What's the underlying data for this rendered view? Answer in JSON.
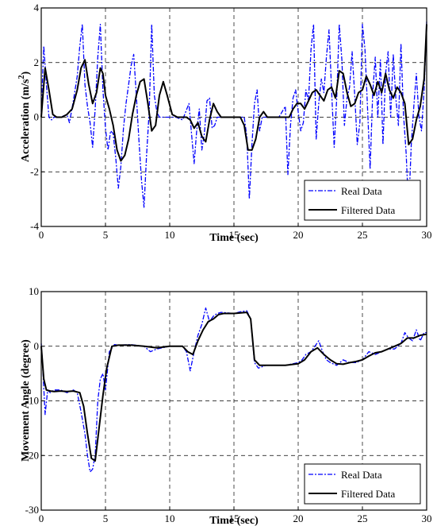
{
  "chart_data": [
    {
      "type": "line",
      "xlabel": "Time (sec)",
      "ylabel_main": "Acceleration (m/s",
      "ylabel_sup": "2",
      "ylabel_tail": ")",
      "xlim": [
        0,
        30
      ],
      "ylim": [
        -4,
        4
      ],
      "xticks": [
        0,
        5,
        10,
        15,
        20,
        25,
        30
      ],
      "yticks": [
        -4,
        -2,
        0,
        2,
        4
      ],
      "grid": true,
      "legend_position": "bottom-right",
      "series": [
        {
          "name": "Real Data",
          "color": "#0000ff",
          "style": "dash-dot",
          "x": [
            0,
            0.2,
            0.4,
            0.6,
            0.8,
            1.0,
            1.5,
            2.0,
            2.2,
            2.5,
            2.8,
            3.0,
            3.2,
            3.4,
            3.6,
            3.8,
            4.0,
            4.2,
            4.4,
            4.6,
            4.8,
            5.0,
            5.2,
            5.4,
            5.6,
            5.8,
            6.0,
            6.2,
            6.4,
            6.6,
            6.8,
            7.0,
            7.2,
            7.4,
            7.6,
            7.8,
            8.0,
            8.2,
            8.4,
            8.6,
            8.8,
            9.0,
            9.2,
            9.4,
            9.6,
            9.8,
            10.0,
            10.5,
            11.0,
            11.5,
            11.7,
            11.9,
            12.1,
            12.3,
            12.5,
            12.7,
            12.9,
            13.1,
            13.3,
            13.5,
            13.7,
            14.0,
            14.5,
            15.0,
            15.5,
            15.8,
            16.0,
            16.2,
            16.4,
            16.6,
            16.8,
            17.0,
            17.2,
            17.4,
            17.6,
            18.0,
            18.5,
            19.0,
            19.2,
            19.4,
            19.6,
            19.8,
            20.0,
            20.2,
            20.4,
            20.6,
            20.8,
            21.0,
            21.2,
            21.4,
            21.6,
            21.8,
            22.0,
            22.2,
            22.4,
            22.6,
            22.8,
            23.0,
            23.2,
            23.4,
            23.6,
            23.8,
            24.0,
            24.2,
            24.4,
            24.6,
            24.8,
            25.0,
            25.2,
            25.4,
            25.6,
            25.8,
            26.0,
            26.2,
            26.4,
            26.6,
            26.8,
            27.0,
            27.2,
            27.4,
            27.6,
            27.8,
            28.0,
            28.2,
            28.4,
            28.6,
            28.8,
            29.0,
            29.2,
            29.4,
            29.6,
            29.8,
            30.0
          ],
          "y": [
            0.2,
            2.6,
            1.2,
            0.0,
            -0.1,
            0.0,
            0.0,
            0.1,
            -0.2,
            0.6,
            1.5,
            2.6,
            3.4,
            1.2,
            0.4,
            -0.2,
            -1.1,
            0.3,
            2.2,
            3.4,
            1.0,
            -0.4,
            -1.2,
            -0.5,
            -0.6,
            -1.5,
            -2.6,
            -1.8,
            -0.4,
            0.5,
            1.2,
            1.9,
            2.3,
            0.8,
            -0.8,
            -2.3,
            -3.3,
            -1.4,
            0.2,
            3.4,
            0.8,
            0.2,
            0.0,
            0.0,
            0.0,
            0.0,
            0.0,
            0.0,
            -0.1,
            0.5,
            -0.6,
            -1.7,
            -0.5,
            0.3,
            -1.2,
            -0.6,
            0.6,
            0.7,
            -0.4,
            -0.3,
            0.0,
            0.0,
            0.0,
            0.0,
            0.0,
            0.0,
            -0.7,
            -3.0,
            -1.0,
            0.5,
            1.0,
            -0.5,
            0.0,
            0.0,
            0.0,
            0.0,
            0.0,
            0.4,
            -2.1,
            -0.3,
            0.7,
            1.0,
            0.2,
            -0.5,
            -0.2,
            1.0,
            0.6,
            2.5,
            3.4,
            -0.8,
            0.5,
            1.4,
            0.9,
            2.2,
            3.2,
            1.0,
            -1.1,
            0.7,
            3.4,
            2.1,
            -0.3,
            0.7,
            1.1,
            2.4,
            0.8,
            -1.0,
            -0.2,
            3.4,
            2.5,
            0.3,
            -1.9,
            0.9,
            2.2,
            0.0,
            2.1,
            -1.0,
            1.6,
            2.4,
            0.0,
            2.3,
            0.7,
            -0.3,
            2.7,
            0.1,
            -1.3,
            -3.4,
            -1.0,
            0.4,
            1.6,
            0.0,
            -0.5,
            1.0,
            3.5
          ]
        },
        {
          "name": "Filtered Data",
          "color": "#000000",
          "style": "solid",
          "x": [
            0,
            0.3,
            0.6,
            0.9,
            1.2,
            1.6,
            2.0,
            2.4,
            2.8,
            3.1,
            3.4,
            3.7,
            4.0,
            4.3,
            4.6,
            4.8,
            5.0,
            5.3,
            5.6,
            5.9,
            6.2,
            6.5,
            6.8,
            7.1,
            7.4,
            7.7,
            8.0,
            8.3,
            8.6,
            8.9,
            9.2,
            9.5,
            9.8,
            10.2,
            10.6,
            11.0,
            11.3,
            11.6,
            11.9,
            12.2,
            12.5,
            12.8,
            13.1,
            13.4,
            13.7,
            14.0,
            14.5,
            15.0,
            15.5,
            15.8,
            16.1,
            16.4,
            16.7,
            17.0,
            17.3,
            17.6,
            18.0,
            18.5,
            19.0,
            19.3,
            19.6,
            19.9,
            20.2,
            20.5,
            20.8,
            21.1,
            21.4,
            21.7,
            22.0,
            22.3,
            22.6,
            22.9,
            23.2,
            23.5,
            23.8,
            24.1,
            24.4,
            24.7,
            25.0,
            25.3,
            25.6,
            25.9,
            26.2,
            26.5,
            26.8,
            27.1,
            27.4,
            27.7,
            28.0,
            28.3,
            28.6,
            28.9,
            29.2,
            29.5,
            29.8,
            30.0
          ],
          "y": [
            0.0,
            1.8,
            1.0,
            0.1,
            0.0,
            0.0,
            0.1,
            0.3,
            1.0,
            1.8,
            2.1,
            1.2,
            0.5,
            0.9,
            1.8,
            1.6,
            0.8,
            0.3,
            -0.3,
            -1.2,
            -1.6,
            -1.4,
            -0.8,
            0.1,
            0.8,
            1.3,
            1.4,
            0.5,
            -0.5,
            -0.3,
            0.8,
            1.3,
            0.8,
            0.1,
            0.0,
            0.0,
            0.0,
            -0.1,
            -0.4,
            -0.2,
            -0.7,
            -0.9,
            -0.1,
            0.5,
            0.2,
            0.0,
            0.0,
            0.0,
            0.0,
            -0.3,
            -1.2,
            -1.2,
            -0.8,
            0.0,
            0.2,
            0.0,
            0.0,
            0.0,
            0.0,
            0.0,
            0.3,
            0.5,
            0.5,
            0.3,
            0.6,
            0.9,
            1.0,
            0.8,
            0.6,
            1.0,
            1.1,
            0.7,
            1.7,
            1.6,
            0.9,
            0.4,
            0.5,
            0.9,
            1.0,
            1.5,
            1.2,
            0.8,
            1.3,
            0.9,
            1.6,
            1.0,
            0.7,
            1.1,
            0.9,
            0.5,
            -1.0,
            -0.8,
            -0.1,
            0.4,
            1.4,
            3.4
          ]
        }
      ]
    },
    {
      "type": "line",
      "xlabel": "Time (sec)",
      "ylabel": "Movement Angle (degree)",
      "xlim": [
        0,
        30
      ],
      "ylim": [
        -30,
        10
      ],
      "xticks": [
        0,
        5,
        10,
        15,
        20,
        25,
        30
      ],
      "yticks": [
        -30,
        -20,
        -10,
        0,
        10
      ],
      "grid": true,
      "legend_position": "bottom-right",
      "series": [
        {
          "name": "Real Data",
          "color": "#0000ff",
          "style": "dash-dot",
          "x": [
            0,
            0.1,
            0.3,
            0.5,
            0.7,
            1.0,
            1.5,
            2.0,
            2.5,
            2.8,
            3.1,
            3.4,
            3.6,
            3.8,
            4.0,
            4.2,
            4.4,
            4.6,
            4.8,
            5.0,
            5.3,
            5.7,
            6.0,
            7.0,
            8.0,
            8.5,
            9.0,
            10.0,
            11.0,
            11.3,
            11.6,
            11.9,
            12.2,
            12.5,
            12.8,
            13.1,
            13.4,
            13.7,
            14.0,
            15.0,
            15.5,
            16.0,
            16.3,
            16.6,
            16.9,
            17.5,
            18.0,
            19.0,
            20.0,
            20.3,
            20.6,
            21.0,
            21.3,
            21.6,
            21.9,
            22.2,
            22.5,
            23.0,
            23.5,
            24.0,
            24.5,
            25.0,
            25.5,
            26.0,
            26.5,
            27.0,
            27.5,
            28.0,
            28.3,
            28.6,
            28.9,
            29.2,
            29.5,
            29.8,
            30.0
          ],
          "y": [
            0.5,
            -3.0,
            -12.5,
            -8.0,
            -8.5,
            -8.0,
            -8.0,
            -8.5,
            -8.0,
            -8.5,
            -12.0,
            -16.0,
            -20.0,
            -23.0,
            -22.5,
            -20.0,
            -10.0,
            -6.0,
            -5.0,
            -8.0,
            -1.0,
            0.3,
            0.2,
            0.3,
            0.0,
            -1.0,
            -0.5,
            0.0,
            0.0,
            -1.0,
            -4.5,
            -1.0,
            2.0,
            4.0,
            7.0,
            4.5,
            5.5,
            6.0,
            6.2,
            6.0,
            6.3,
            6.5,
            5.0,
            -3.0,
            -4.0,
            -3.5,
            -3.5,
            -3.5,
            -3.0,
            -2.5,
            -1.5,
            -1.0,
            0.0,
            1.0,
            -1.0,
            -2.5,
            -3.0,
            -3.5,
            -2.5,
            -3.0,
            -3.0,
            -2.5,
            -1.0,
            -1.5,
            -1.0,
            -0.5,
            -0.5,
            0.5,
            2.5,
            1.5,
            1.0,
            3.0,
            1.0,
            2.5,
            2.5
          ]
        },
        {
          "name": "Filtered Data",
          "color": "#000000",
          "style": "solid",
          "x": [
            0,
            0.2,
            0.4,
            0.7,
            1.0,
            1.5,
            2.0,
            2.5,
            3.0,
            3.3,
            3.6,
            3.9,
            4.2,
            4.5,
            4.8,
            5.1,
            5.5,
            6.0,
            7.0,
            8.0,
            9.0,
            10.0,
            11.0,
            11.4,
            11.8,
            12.2,
            12.6,
            13.0,
            13.4,
            13.8,
            14.2,
            15.0,
            16.0,
            16.3,
            16.6,
            17.0,
            18.0,
            19.0,
            20.0,
            20.5,
            21.0,
            21.5,
            22.0,
            22.5,
            23.0,
            23.5,
            24.0,
            24.5,
            25.0,
            25.5,
            26.0,
            26.5,
            27.0,
            27.5,
            28.0,
            28.5,
            29.0,
            29.5,
            30.0
          ],
          "y": [
            0.0,
            -6.0,
            -8.0,
            -8.2,
            -8.3,
            -8.2,
            -8.3,
            -8.2,
            -8.5,
            -11.0,
            -16.0,
            -20.5,
            -21.0,
            -15.0,
            -9.0,
            -4.0,
            0.0,
            0.2,
            0.2,
            0.0,
            -0.3,
            0.0,
            0.0,
            -1.0,
            -1.5,
            1.0,
            3.0,
            4.5,
            5.0,
            5.8,
            6.0,
            6.0,
            6.2,
            5.0,
            -2.5,
            -3.5,
            -3.5,
            -3.5,
            -3.2,
            -2.5,
            -1.0,
            -0.3,
            -1.5,
            -2.5,
            -3.2,
            -3.3,
            -3.0,
            -2.8,
            -2.5,
            -1.8,
            -1.2,
            -1.0,
            -0.5,
            0.0,
            0.5,
            1.5,
            1.5,
            2.0,
            2.2
          ]
        }
      ]
    }
  ]
}
